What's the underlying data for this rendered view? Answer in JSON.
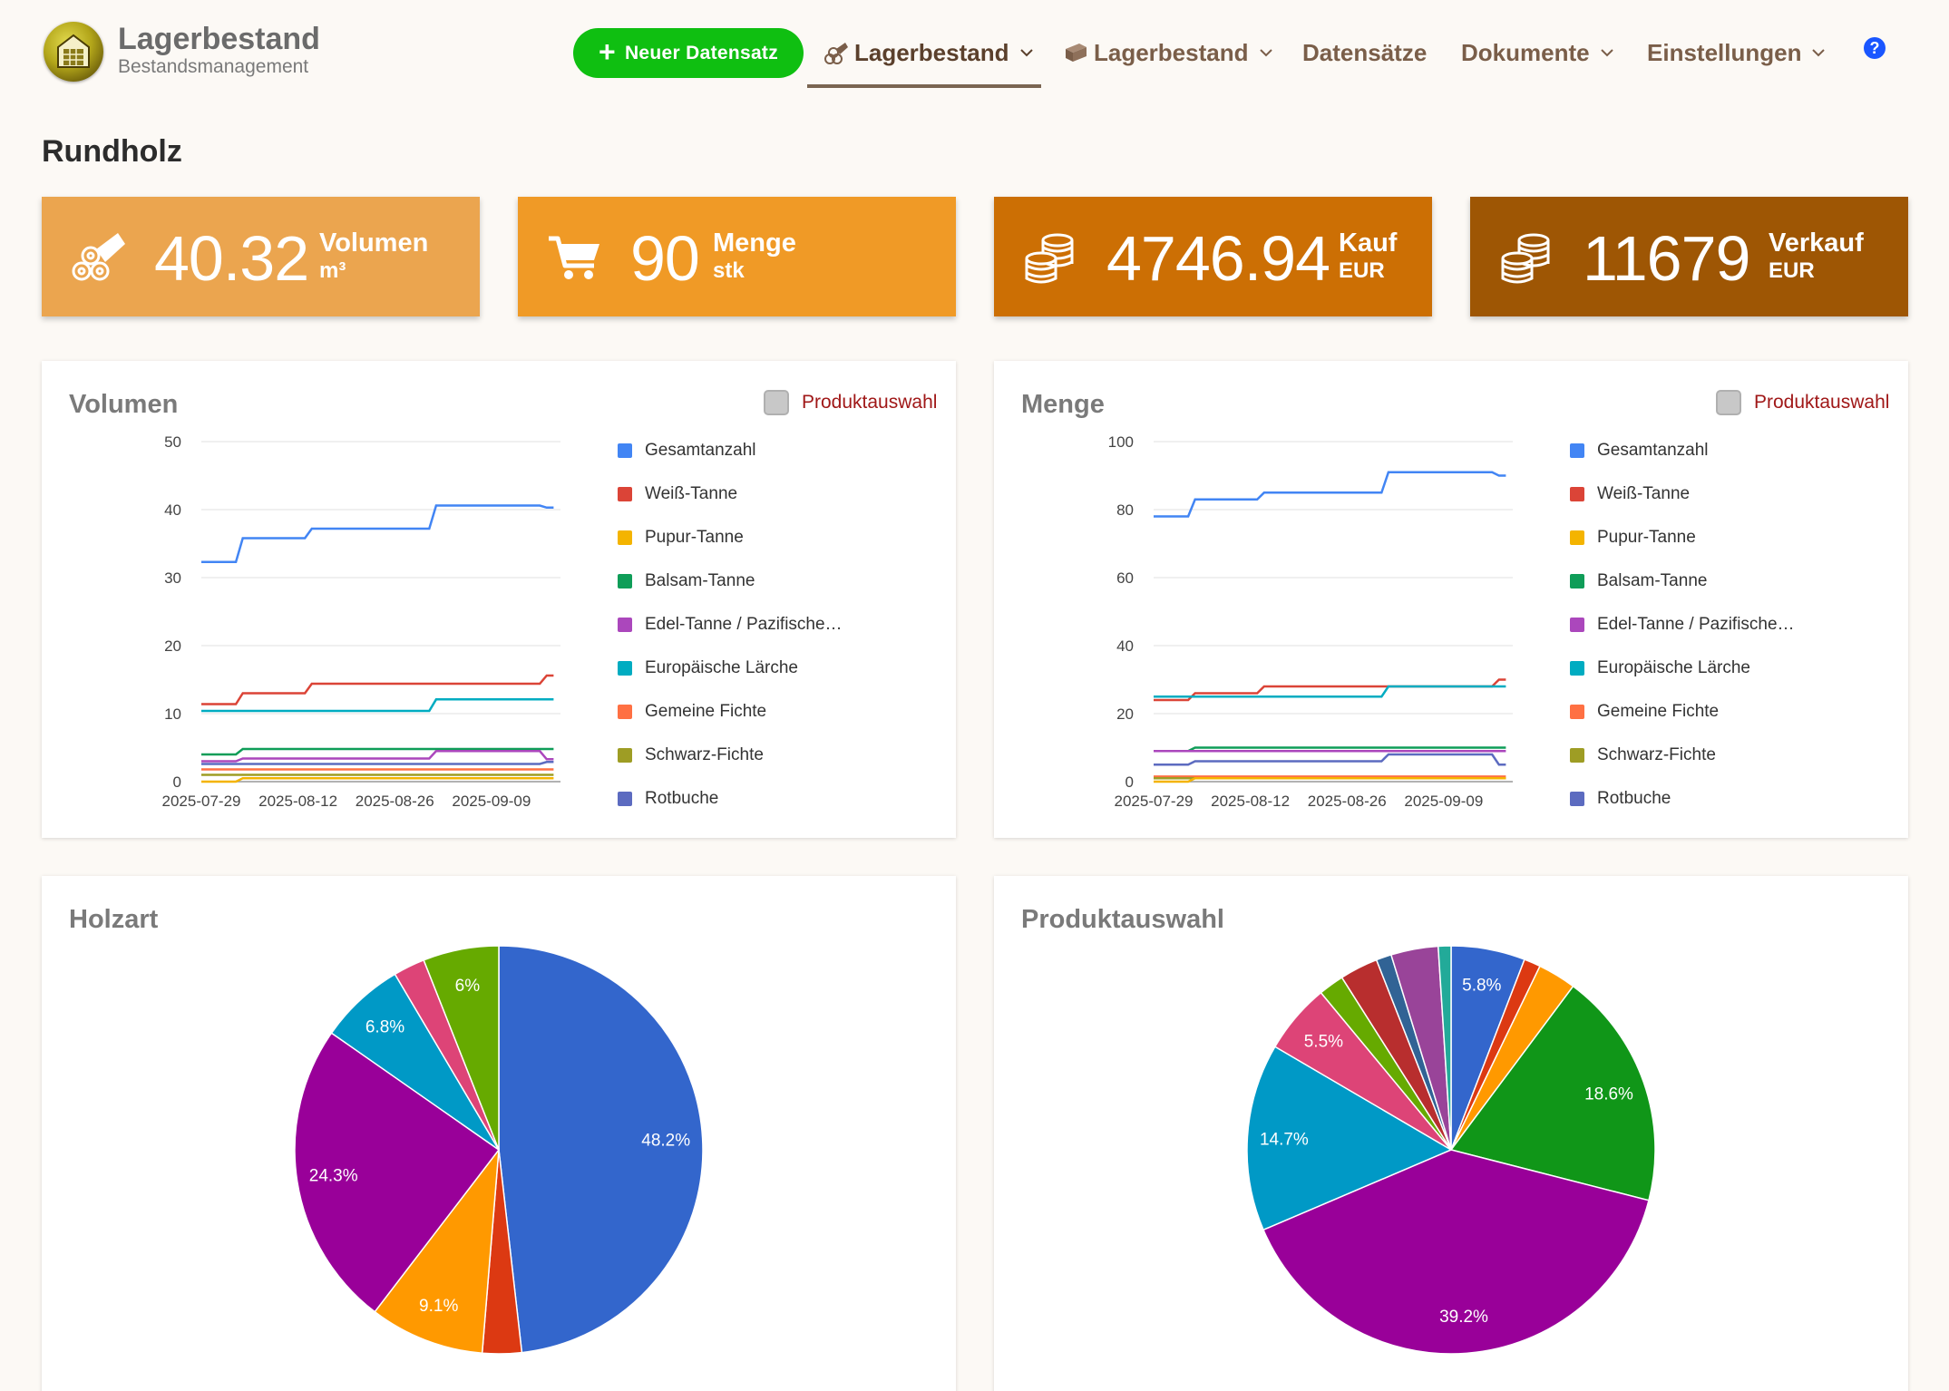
{
  "header": {
    "brand_title": "Lagerbestand",
    "brand_subtitle": "Bestandsmanagement",
    "new_button": "Neuer Datensatz",
    "nav": [
      {
        "label": "Lagerbestand",
        "active": true
      },
      {
        "label": "Lagerbestand",
        "active": false
      },
      {
        "label": "Datensätze",
        "active": false
      },
      {
        "label": "Dokumente",
        "active": false
      },
      {
        "label": "Einstellungen",
        "active": false
      }
    ],
    "help": "?"
  },
  "page_title": "Rundholz",
  "stats": [
    {
      "value": "40.32",
      "label": "Volumen",
      "unit": "m³",
      "color": "#eba54f",
      "icon": "logs-icon"
    },
    {
      "value": "90",
      "label": "Menge",
      "unit": "stk",
      "color": "#f09a26",
      "icon": "cart-icon"
    },
    {
      "value": "4746.94",
      "label": "Kauf",
      "unit": "EUR",
      "color": "#cc6f04",
      "icon": "coins-icon"
    },
    {
      "value": "11679",
      "label": "Verkauf",
      "unit": "EUR",
      "color": "#9e5604",
      "icon": "coins-icon"
    }
  ],
  "toggle_label": "Produktauswahl",
  "legend": [
    {
      "name": "Gesamtanzahl",
      "color": "#4285f4"
    },
    {
      "name": "Weiß-Tanne",
      "color": "#db4437"
    },
    {
      "name": "Pupur-Tanne",
      "color": "#f4b400"
    },
    {
      "name": "Balsam-Tanne",
      "color": "#0f9d58"
    },
    {
      "name": "Edel-Tanne / Pazifische…",
      "color": "#ab47bc"
    },
    {
      "name": "Europäische Lärche",
      "color": "#00acc1"
    },
    {
      "name": "Gemeine Fichte",
      "color": "#ff7043"
    },
    {
      "name": "Schwarz-Fichte",
      "color": "#9e9d24"
    },
    {
      "name": "Rotbuche",
      "color": "#5c6bc0"
    }
  ],
  "chart_data": [
    {
      "type": "line",
      "title": "Volumen",
      "x": [
        "2025-07-29",
        "2025-08-12",
        "2025-08-26",
        "2025-09-09"
      ],
      "x_range": [
        "2025-07-29",
        "2025-09-19"
      ],
      "ylim": [
        0,
        50
      ],
      "yticks": [
        0,
        10,
        20,
        30,
        40,
        50
      ],
      "series": [
        {
          "name": "Gesamtanzahl",
          "color": "#4285f4",
          "points": [
            [
              "2025-07-29",
              32.3
            ],
            [
              "2025-08-03",
              32.3
            ],
            [
              "2025-08-04",
              35.8
            ],
            [
              "2025-08-13",
              35.8
            ],
            [
              "2025-08-14",
              37.2
            ],
            [
              "2025-08-31",
              37.2
            ],
            [
              "2025-09-01",
              40.6
            ],
            [
              "2025-09-16",
              40.6
            ],
            [
              "2025-09-17",
              40.3
            ],
            [
              "2025-09-18",
              40.3
            ]
          ]
        },
        {
          "name": "Weiß-Tanne",
          "color": "#db4437",
          "points": [
            [
              "2025-07-29",
              11.4
            ],
            [
              "2025-08-03",
              11.4
            ],
            [
              "2025-08-04",
              13.0
            ],
            [
              "2025-08-13",
              13.0
            ],
            [
              "2025-08-14",
              14.4
            ],
            [
              "2025-09-16",
              14.4
            ],
            [
              "2025-09-17",
              15.6
            ],
            [
              "2025-09-18",
              15.6
            ]
          ]
        },
        {
          "name": "Europäische Lärche",
          "color": "#00acc1",
          "points": [
            [
              "2025-07-29",
              10.4
            ],
            [
              "2025-08-31",
              10.4
            ],
            [
              "2025-09-01",
              12.1
            ],
            [
              "2025-09-18",
              12.1
            ]
          ]
        },
        {
          "name": "Balsam-Tanne",
          "color": "#0f9d58",
          "points": [
            [
              "2025-07-29",
              4.0
            ],
            [
              "2025-08-03",
              4.0
            ],
            [
              "2025-08-04",
              4.8
            ],
            [
              "2025-09-18",
              4.8
            ]
          ]
        },
        {
          "name": "Edel-Tanne / Pazifische…",
          "color": "#ab47bc",
          "points": [
            [
              "2025-07-29",
              3.0
            ],
            [
              "2025-08-03",
              3.0
            ],
            [
              "2025-08-04",
              3.4
            ],
            [
              "2025-08-31",
              3.4
            ],
            [
              "2025-09-01",
              4.5
            ],
            [
              "2025-09-16",
              4.5
            ],
            [
              "2025-09-17",
              3.3
            ],
            [
              "2025-09-18",
              3.3
            ]
          ]
        },
        {
          "name": "Rotbuche",
          "color": "#5c6bc0",
          "points": [
            [
              "2025-07-29",
              2.6
            ],
            [
              "2025-08-31",
              2.6
            ],
            [
              "2025-09-01",
              2.6
            ],
            [
              "2025-09-16",
              2.6
            ],
            [
              "2025-09-17",
              2.9
            ],
            [
              "2025-09-18",
              2.9
            ]
          ]
        },
        {
          "name": "Gemeine Fichte",
          "color": "#ff7043",
          "points": [
            [
              "2025-07-29",
              1.8
            ],
            [
              "2025-09-18",
              1.8
            ]
          ]
        },
        {
          "name": "Schwarz-Fichte",
          "color": "#9e9d24",
          "points": [
            [
              "2025-07-29",
              1.0
            ],
            [
              "2025-09-18",
              1.0
            ]
          ]
        },
        {
          "name": "Pupur-Tanne",
          "color": "#f4b400",
          "points": [
            [
              "2025-07-29",
              0.0
            ],
            [
              "2025-08-03",
              0.0
            ],
            [
              "2025-08-04",
              0.5
            ],
            [
              "2025-09-18",
              0.5
            ]
          ]
        }
      ]
    },
    {
      "type": "line",
      "title": "Menge",
      "x": [
        "2025-07-29",
        "2025-08-12",
        "2025-08-26",
        "2025-09-09"
      ],
      "x_range": [
        "2025-07-29",
        "2025-09-19"
      ],
      "ylim": [
        0,
        100
      ],
      "yticks": [
        0,
        20,
        40,
        60,
        80,
        100
      ],
      "series": [
        {
          "name": "Gesamtanzahl",
          "color": "#4285f4",
          "points": [
            [
              "2025-07-29",
              78
            ],
            [
              "2025-08-03",
              78
            ],
            [
              "2025-08-04",
              83
            ],
            [
              "2025-08-13",
              83
            ],
            [
              "2025-08-14",
              85
            ],
            [
              "2025-08-31",
              85
            ],
            [
              "2025-09-01",
              91
            ],
            [
              "2025-09-16",
              91
            ],
            [
              "2025-09-17",
              90
            ],
            [
              "2025-09-18",
              90
            ]
          ]
        },
        {
          "name": "Weiß-Tanne",
          "color": "#db4437",
          "points": [
            [
              "2025-07-29",
              24
            ],
            [
              "2025-08-03",
              24
            ],
            [
              "2025-08-04",
              26
            ],
            [
              "2025-08-13",
              26
            ],
            [
              "2025-08-14",
              28
            ],
            [
              "2025-09-16",
              28
            ],
            [
              "2025-09-17",
              30
            ],
            [
              "2025-09-18",
              30
            ]
          ]
        },
        {
          "name": "Europäische Lärche",
          "color": "#00acc1",
          "points": [
            [
              "2025-07-29",
              25
            ],
            [
              "2025-08-31",
              25
            ],
            [
              "2025-09-01",
              28
            ],
            [
              "2025-09-18",
              28
            ]
          ]
        },
        {
          "name": "Balsam-Tanne",
          "color": "#0f9d58",
          "points": [
            [
              "2025-07-29",
              9
            ],
            [
              "2025-08-03",
              9
            ],
            [
              "2025-08-04",
              10
            ],
            [
              "2025-09-18",
              10
            ]
          ]
        },
        {
          "name": "Edel-Tanne / Pazifische…",
          "color": "#ab47bc",
          "points": [
            [
              "2025-07-29",
              9
            ],
            [
              "2025-09-18",
              9
            ]
          ]
        },
        {
          "name": "Rotbuche",
          "color": "#5c6bc0",
          "points": [
            [
              "2025-07-29",
              5
            ],
            [
              "2025-08-03",
              5
            ],
            [
              "2025-08-04",
              6
            ],
            [
              "2025-08-31",
              6
            ],
            [
              "2025-09-01",
              8
            ],
            [
              "2025-09-16",
              8
            ],
            [
              "2025-09-17",
              5
            ],
            [
              "2025-09-18",
              5
            ]
          ]
        },
        {
          "name": "Gemeine Fichte",
          "color": "#ff7043",
          "points": [
            [
              "2025-07-29",
              1.5
            ],
            [
              "2025-09-18",
              1.5
            ]
          ]
        },
        {
          "name": "Schwarz-Fichte",
          "color": "#9e9d24",
          "points": [
            [
              "2025-07-29",
              1
            ],
            [
              "2025-09-18",
              1
            ]
          ]
        },
        {
          "name": "Pupur-Tanne",
          "color": "#f4b400",
          "points": [
            [
              "2025-07-29",
              0
            ],
            [
              "2025-08-03",
              0
            ],
            [
              "2025-08-04",
              1
            ],
            [
              "2025-09-18",
              1
            ]
          ]
        }
      ]
    },
    {
      "type": "pie",
      "title": "Holzart",
      "slices": [
        {
          "value": 48.2,
          "label": "48.2%",
          "color": "#3366cc"
        },
        {
          "value": 3.1,
          "label": "",
          "color": "#dc3912"
        },
        {
          "value": 9.1,
          "label": "9.1%",
          "color": "#ff9900"
        },
        {
          "value": 24.3,
          "label": "24.3%",
          "color": "#990099"
        },
        {
          "value": 6.8,
          "label": "6.8%",
          "color": "#0099c6"
        },
        {
          "value": 2.5,
          "label": "",
          "color": "#dd4477"
        },
        {
          "value": 6.0,
          "label": "6%",
          "color": "#66aa00"
        }
      ]
    },
    {
      "type": "pie",
      "title": "Produktauswahl",
      "slices": [
        {
          "value": 5.8,
          "label": "5.8%",
          "color": "#3366cc"
        },
        {
          "value": 1.3,
          "label": "",
          "color": "#dc3912"
        },
        {
          "value": 3.0,
          "label": "",
          "color": "#ff9900"
        },
        {
          "value": 18.6,
          "label": "18.6%",
          "color": "#109618"
        },
        {
          "value": 39.2,
          "label": "39.2%",
          "color": "#990099"
        },
        {
          "value": 14.7,
          "label": "14.7%",
          "color": "#0099c6"
        },
        {
          "value": 5.5,
          "label": "5.5%",
          "color": "#dd4477"
        },
        {
          "value": 2.0,
          "label": "",
          "color": "#66aa00"
        },
        {
          "value": 3.0,
          "label": "",
          "color": "#b82e2e"
        },
        {
          "value": 1.2,
          "label": "",
          "color": "#316395"
        },
        {
          "value": 3.7,
          "label": "",
          "color": "#994499"
        },
        {
          "value": 1.0,
          "label": "",
          "color": "#22aa99"
        }
      ]
    }
  ]
}
